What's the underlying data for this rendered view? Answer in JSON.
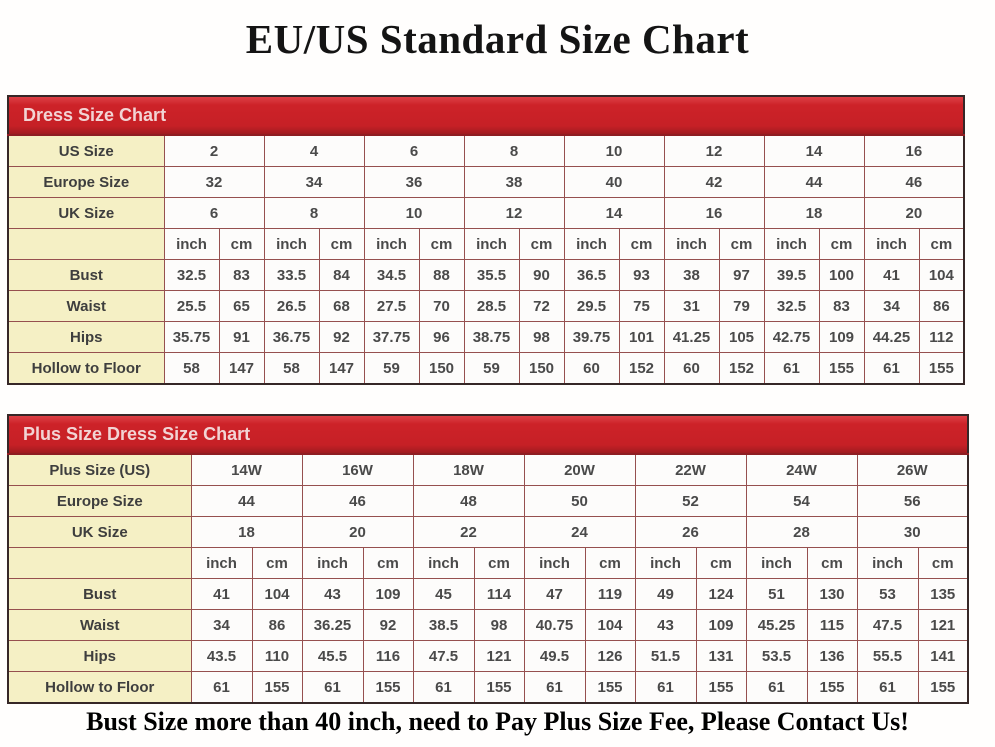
{
  "page": {
    "title": "EU/US Standard Size Chart",
    "footer_note": "Bust Size more than 40 inch, need to Pay Plus Size Fee, Please Contact Us!"
  },
  "units": {
    "inch": "inch",
    "cm": "cm"
  },
  "colors": {
    "header_band_red": "#CB2127",
    "header_band_text": "#F2D4D4",
    "label_cell_cream": "#F5F0C5",
    "inner_border_maroon": "#96504F",
    "outer_border_dark": "#362727",
    "cell_text_gray": "#4A4A4A"
  },
  "chart_data": [
    {
      "type": "table",
      "title": "Dress Size Chart",
      "columns": 8,
      "rows": [
        {
          "kind": "size",
          "label": "US Size",
          "values": [
            "2",
            "4",
            "6",
            "8",
            "10",
            "12",
            "14",
            "16"
          ]
        },
        {
          "kind": "size",
          "label": "Europe Size",
          "values": [
            "32",
            "34",
            "36",
            "38",
            "40",
            "42",
            "44",
            "46"
          ]
        },
        {
          "kind": "size",
          "label": "UK Size",
          "values": [
            "6",
            "8",
            "10",
            "12",
            "14",
            "16",
            "18",
            "20"
          ]
        },
        {
          "kind": "units",
          "label": ""
        },
        {
          "kind": "measure",
          "label": "Bust",
          "inch": [
            "32.5",
            "33.5",
            "34.5",
            "35.5",
            "36.5",
            "38",
            "39.5",
            "41"
          ],
          "cm": [
            "83",
            "84",
            "88",
            "90",
            "93",
            "97",
            "100",
            "104"
          ]
        },
        {
          "kind": "measure",
          "label": "Waist",
          "inch": [
            "25.5",
            "26.5",
            "27.5",
            "28.5",
            "29.5",
            "31",
            "32.5",
            "34"
          ],
          "cm": [
            "65",
            "68",
            "70",
            "72",
            "75",
            "79",
            "83",
            "86"
          ]
        },
        {
          "kind": "measure",
          "label": "Hips",
          "inch": [
            "35.75",
            "36.75",
            "37.75",
            "38.75",
            "39.75",
            "41.25",
            "42.75",
            "44.25"
          ],
          "cm": [
            "91",
            "92",
            "96",
            "98",
            "101",
            "105",
            "109",
            "112"
          ]
        },
        {
          "kind": "measure",
          "label": "Hollow to Floor",
          "inch": [
            "58",
            "58",
            "59",
            "59",
            "60",
            "60",
            "61",
            "61"
          ],
          "cm": [
            "147",
            "147",
            "150",
            "150",
            "152",
            "152",
            "155",
            "155"
          ]
        }
      ]
    },
    {
      "type": "table",
      "title": "Plus Size Dress Size Chart",
      "columns": 7,
      "rows": [
        {
          "kind": "size",
          "label": "Plus Size (US)",
          "values": [
            "14W",
            "16W",
            "18W",
            "20W",
            "22W",
            "24W",
            "26W"
          ]
        },
        {
          "kind": "size",
          "label": "Europe Size",
          "values": [
            "44",
            "46",
            "48",
            "50",
            "52",
            "54",
            "56"
          ]
        },
        {
          "kind": "size",
          "label": "UK Size",
          "values": [
            "18",
            "20",
            "22",
            "24",
            "26",
            "28",
            "30"
          ]
        },
        {
          "kind": "units",
          "label": ""
        },
        {
          "kind": "measure",
          "label": "Bust",
          "inch": [
            "41",
            "43",
            "45",
            "47",
            "49",
            "51",
            "53"
          ],
          "cm": [
            "104",
            "109",
            "114",
            "119",
            "124",
            "130",
            "135"
          ]
        },
        {
          "kind": "measure",
          "label": "Waist",
          "inch": [
            "34",
            "36.25",
            "38.5",
            "40.75",
            "43",
            "45.25",
            "47.5"
          ],
          "cm": [
            "86",
            "92",
            "98",
            "104",
            "109",
            "115",
            "121"
          ]
        },
        {
          "kind": "measure",
          "label": "Hips",
          "inch": [
            "43.5",
            "45.5",
            "47.5",
            "49.5",
            "51.5",
            "53.5",
            "55.5"
          ],
          "cm": [
            "110",
            "116",
            "121",
            "126",
            "131",
            "136",
            "141"
          ]
        },
        {
          "kind": "measure",
          "label": "Hollow to Floor",
          "inch": [
            "61",
            "61",
            "61",
            "61",
            "61",
            "61",
            "61"
          ],
          "cm": [
            "155",
            "155",
            "155",
            "155",
            "155",
            "155",
            "155"
          ]
        }
      ]
    }
  ]
}
